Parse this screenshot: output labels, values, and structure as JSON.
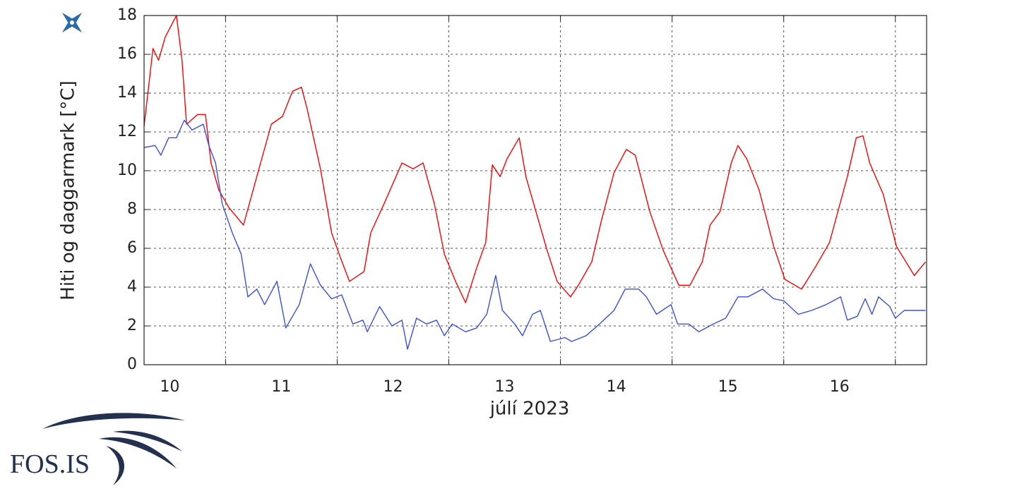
{
  "chart_data": {
    "type": "line",
    "ylabel": "Hiti og daggarmark [°C]",
    "xlabel": "júlí 2023",
    "xlim": [
      10.27,
      17.28
    ],
    "xticks": [
      {
        "value": 10.5,
        "label": "10"
      },
      {
        "value": 11.5,
        "label": "11"
      },
      {
        "value": 12.5,
        "label": "12"
      },
      {
        "value": 13.5,
        "label": "13"
      },
      {
        "value": 14.5,
        "label": "14"
      },
      {
        "value": 15.5,
        "label": "15"
      },
      {
        "value": 16.5,
        "label": "16"
      }
    ],
    "xgridlines": [
      11,
      12,
      13,
      14,
      15,
      16,
      17
    ],
    "ylim": [
      0,
      18
    ],
    "yticks": [
      0,
      2,
      4,
      6,
      8,
      10,
      12,
      14,
      16,
      18
    ],
    "grid": true,
    "series": [
      {
        "color": "#ff0000",
        "x": [
          10.27,
          10.35,
          10.4,
          10.46,
          10.56,
          10.61,
          10.65,
          10.75,
          10.82,
          10.87,
          10.94,
          11.03,
          11.16,
          11.28,
          11.41,
          11.51,
          11.6,
          11.68,
          11.73,
          11.85,
          11.95,
          12.03,
          12.11,
          12.24,
          12.3,
          12.42,
          12.58,
          12.68,
          12.77,
          12.87,
          12.96,
          13.06,
          13.15,
          13.25,
          13.33,
          13.39,
          13.46,
          13.52,
          13.63,
          13.69,
          13.78,
          13.88,
          13.97,
          14.09,
          14.16,
          14.28,
          14.37,
          14.48,
          14.59,
          14.67,
          14.8,
          14.92,
          15.06,
          15.16,
          15.27,
          15.34,
          15.43,
          15.53,
          15.59,
          15.67,
          15.78,
          15.91,
          16.01,
          16.16,
          16.28,
          16.41,
          16.57,
          16.65,
          16.71,
          16.77,
          16.89,
          17.01,
          17.17,
          17.27
        ],
        "values": [
          12.3,
          16.3,
          15.7,
          16.9,
          18.0,
          15.7,
          12.4,
          12.9,
          12.9,
          10.4,
          9.0,
          8.1,
          7.2,
          9.7,
          12.4,
          12.8,
          14.1,
          14.3,
          13.2,
          10.1,
          6.8,
          5.5,
          4.3,
          4.8,
          6.8,
          8.3,
          10.4,
          10.1,
          10.4,
          8.3,
          5.7,
          4.3,
          3.2,
          5.0,
          6.3,
          10.3,
          9.7,
          10.6,
          11.7,
          9.7,
          7.9,
          5.9,
          4.3,
          3.5,
          4.1,
          5.3,
          7.5,
          9.9,
          11.1,
          10.8,
          7.9,
          5.9,
          4.1,
          4.1,
          5.3,
          7.2,
          7.9,
          10.4,
          11.3,
          10.6,
          9.0,
          6.1,
          4.4,
          3.9,
          5.0,
          6.3,
          9.7,
          11.7,
          11.8,
          10.4,
          8.8,
          6.1,
          4.6,
          5.3
        ]
      },
      {
        "color": "#3a4fe0",
        "x": [
          10.27,
          10.37,
          10.42,
          10.49,
          10.56,
          10.63,
          10.7,
          10.8,
          10.85,
          10.91,
          10.97,
          11.06,
          11.14,
          11.2,
          11.28,
          11.35,
          11.46,
          11.54,
          11.66,
          11.76,
          11.85,
          11.95,
          12.04,
          12.14,
          12.23,
          12.27,
          12.38,
          12.49,
          12.58,
          12.63,
          12.71,
          12.8,
          12.89,
          12.96,
          13.03,
          13.15,
          13.25,
          13.34,
          13.42,
          13.48,
          13.59,
          13.66,
          13.75,
          13.82,
          13.91,
          14.04,
          14.1,
          14.23,
          14.35,
          14.48,
          14.58,
          14.7,
          14.77,
          14.86,
          14.99,
          15.05,
          15.15,
          15.24,
          15.37,
          15.48,
          15.59,
          15.68,
          15.81,
          15.91,
          16.0,
          16.13,
          16.25,
          16.38,
          16.51,
          16.57,
          16.66,
          16.73,
          16.79,
          16.85,
          16.95,
          17.0,
          17.08,
          17.17,
          17.27
        ],
        "values": [
          11.2,
          11.3,
          10.8,
          11.7,
          11.7,
          12.6,
          12.1,
          12.4,
          11.3,
          10.4,
          8.3,
          6.8,
          5.7,
          3.5,
          3.9,
          3.1,
          4.3,
          1.9,
          3.1,
          5.2,
          4.1,
          3.4,
          3.6,
          2.1,
          2.3,
          1.7,
          3.0,
          2.0,
          2.3,
          0.8,
          2.4,
          2.1,
          2.3,
          1.5,
          2.1,
          1.7,
          1.9,
          2.6,
          4.6,
          2.8,
          2.1,
          1.5,
          2.6,
          2.8,
          1.2,
          1.4,
          1.2,
          1.5,
          2.1,
          2.8,
          3.9,
          3.9,
          3.5,
          2.6,
          3.1,
          2.1,
          2.1,
          1.7,
          2.1,
          2.4,
          3.5,
          3.5,
          3.9,
          3.4,
          3.3,
          2.6,
          2.8,
          3.1,
          3.5,
          2.3,
          2.5,
          3.4,
          2.6,
          3.5,
          3.0,
          2.4,
          2.8,
          2.8,
          2.8
        ]
      }
    ]
  },
  "logo": {
    "text": "FOS.IS"
  }
}
